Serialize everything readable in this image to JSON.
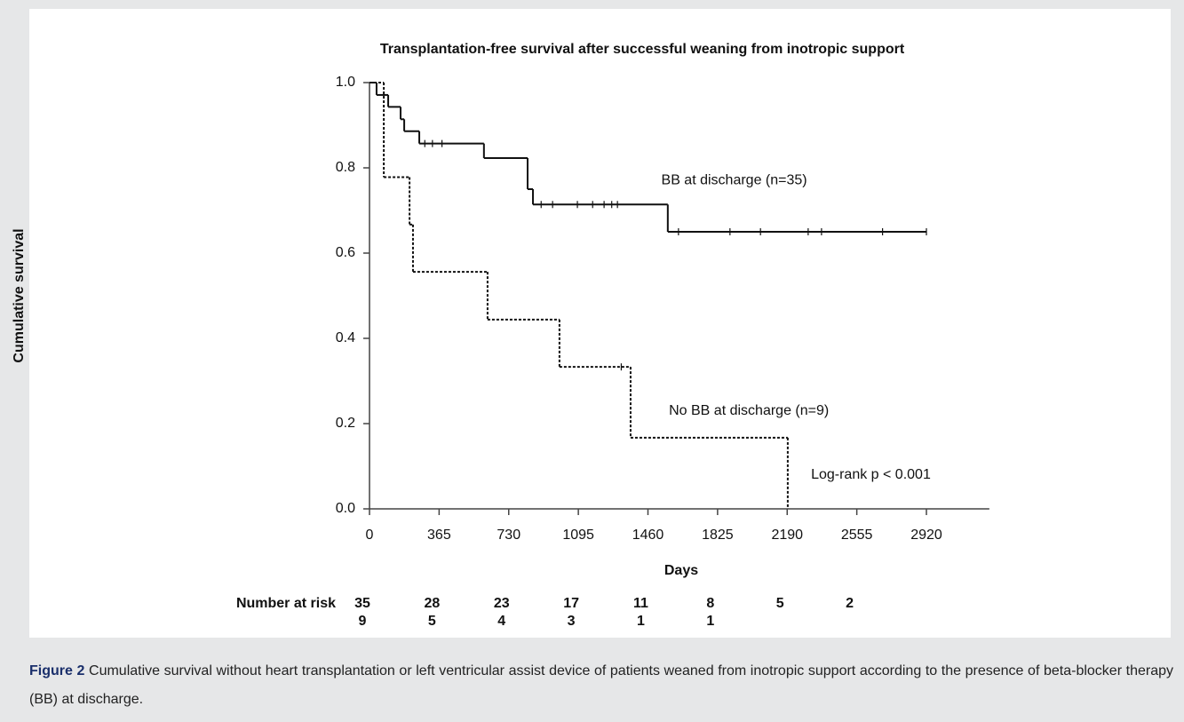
{
  "chart_data": {
    "type": "line",
    "step": "post",
    "title": "Transplantation-free survival after successful weaning from inotropic support",
    "x_label": "Days",
    "y_label": "Cumulative survival",
    "xlim": [
      0,
      3250
    ],
    "ylim": [
      0,
      1
    ],
    "xticks": [
      0,
      365,
      730,
      1095,
      1460,
      1825,
      2190,
      2555,
      2920
    ],
    "yticks": [
      {
        "value": 0,
        "label": "0.0"
      },
      0.2,
      0.4,
      0.6,
      0.8,
      {
        "value": 1,
        "label": "1.0"
      }
    ],
    "series": [
      {
        "name": "BB at discharge (n=35)",
        "color": "#111111",
        "style": "solid",
        "x": [
          0,
          37,
          98,
          163,
          182,
          261,
          600,
          829,
          857,
          1564,
          2920
        ],
        "values": [
          1.0,
          0.971,
          0.943,
          0.914,
          0.886,
          0.857,
          0.823,
          0.75,
          0.714,
          0.65,
          0.65
        ],
        "censored_x": [
          290,
          330,
          380,
          900,
          960,
          1090,
          1170,
          1230,
          1270,
          1300,
          1620,
          1890,
          2050,
          2300,
          2370,
          2690,
          2920
        ],
        "censored_values": [
          0.857,
          0.857,
          0.857,
          0.714,
          0.714,
          0.714,
          0.714,
          0.714,
          0.714,
          0.714,
          0.65,
          0.65,
          0.65,
          0.65,
          0.65,
          0.65,
          0.65
        ]
      },
      {
        "name": "No BB at discharge (n=9)",
        "color": "#111111",
        "style": "dotted",
        "x": [
          0,
          75,
          210,
          228,
          619,
          996,
          1369,
          2193
        ],
        "values": [
          1.0,
          0.778,
          0.667,
          0.556,
          0.444,
          0.333,
          0.167,
          0.0
        ],
        "censored_x": [
          1320
        ],
        "censored_values": [
          0.333
        ]
      }
    ],
    "annotations": [
      {
        "text": "BB at discharge (n=35)",
        "x": 1530,
        "y": 0.77
      },
      {
        "text": "No BB at discharge (n=9)",
        "x": 1570,
        "y": 0.23
      },
      {
        "text": "Log-rank p < 0.001",
        "x": 2315,
        "y": 0.08
      }
    ],
    "risk_table": {
      "label": "Number at risk",
      "rows": [
        [
          35,
          28,
          23,
          17,
          11,
          8,
          5,
          2
        ],
        [
          9,
          5,
          4,
          3,
          1,
          1
        ]
      ]
    }
  },
  "caption": {
    "label": "Figure 2",
    "text": "Cumulative survival without heart transplantation or left ventricular assist device of patients weaned from inotropic support according to the presence of beta-blocker therapy (BB) at discharge."
  }
}
